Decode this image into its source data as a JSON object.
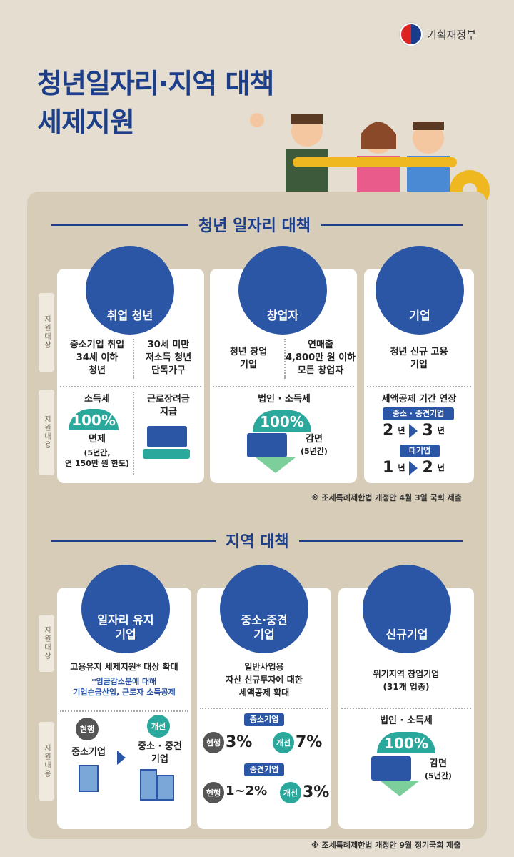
{
  "header": {
    "logo_text": "기획재정부",
    "title_line1": "청년일자리·지역 대책",
    "title_line2": "세제지원"
  },
  "youth": {
    "section_title": "청년 일자리 대책",
    "side_target": "지원대상",
    "side_content": "지원내용",
    "card1": {
      "circle_label": "취업 청년",
      "target_left": "중소기업 취업\n34세 이하\n청년",
      "target_right": "30세 미만\n저소득 청년\n단독가구",
      "tax_label": "소득세",
      "pct": "100%",
      "exempt": "면제",
      "exempt_note": "(5년간,\n연 150만 원 한도)",
      "right_benefit": "근로장려금\n지급"
    },
    "card2": {
      "circle_label": "창업자",
      "target_left": "청년 창업\n기업",
      "target_right": "연매출\n4,800만 원 이하\n모든 창업자",
      "tax_label": "법인 · 소득세",
      "pct": "100%",
      "reduce": "감면",
      "reduce_note": "(5년간)"
    },
    "card3": {
      "circle_label": "기업",
      "target": "청년 신규 고용\n기업",
      "extend_label": "세액공제 기간 연장",
      "pill1": "중소 · 중견기업",
      "from1": "2",
      "to1": "3",
      "pill2": "대기업",
      "from2": "1",
      "to2": "2",
      "unit": "년"
    },
    "note": "※ 조세특례제한법 개정안 4월 3일 국회 제출"
  },
  "region": {
    "section_title": "지역 대책",
    "side_target": "지원대상",
    "side_content": "지원내용",
    "card1": {
      "circle_label": "일자리 유지\n기업",
      "target": "고용유지 세제지원* 대상 확대",
      "target_note": "*임금감소분에 대해\n기업손금산입, 근로자 소득공제",
      "current_label": "현행",
      "improve_label": "개선",
      "current_value": "중소기업",
      "improve_value": "중소 · 중견\n기업"
    },
    "card2": {
      "circle_label": "중소·중견\n기업",
      "target": "일반사업용\n자산 신규투자에 대한\n세액공제 확대",
      "pill1": "중소기업",
      "current_label": "현행",
      "improve_label": "개선",
      "cur1": "3%",
      "imp1": "7%",
      "pill2": "중견기업",
      "cur2": "1~2%",
      "imp2": "3%"
    },
    "card3": {
      "circle_label": "신규기업",
      "target": "위기지역 창업기업\n(31개 업종)",
      "tax_label": "법인 · 소득세",
      "pct": "100%",
      "reduce": "감면",
      "reduce_note": "(5년간)"
    },
    "note": "※ 조세특례제한법 개정안 9월 정기국회 제출"
  }
}
